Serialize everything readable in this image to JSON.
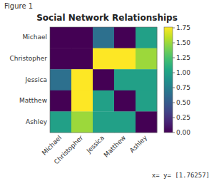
{
  "chart_data": {
    "type": "heatmap",
    "title": "Social Network Relationships",
    "categories": [
      "Michael",
      "Christopher",
      "Jessica",
      "Matthew",
      "Ashley"
    ],
    "values": [
      [
        0.0,
        0.0,
        0.65,
        0.0,
        1.0
      ],
      [
        0.0,
        0.0,
        1.76257,
        1.76257,
        1.5
      ],
      [
        0.65,
        1.76257,
        0.0,
        1.0,
        1.0
      ],
      [
        0.0,
        1.76257,
        1.0,
        0.0,
        1.0
      ],
      [
        1.0,
        1.5,
        1.0,
        1.0,
        0.0
      ]
    ],
    "color": "viridis",
    "colorbar_range": [
      0.0,
      1.76257
    ],
    "colorbar_ticks": [
      {
        "value": 0.0,
        "label": "0.00"
      },
      0.25,
      {
        "value": 0.5,
        "label": "0.50"
      },
      0.75,
      {
        "value": 1.0,
        "label": "1.00"
      },
      1.25,
      {
        "value": 1.5,
        "label": "1.50"
      },
      1.75
    ],
    "annotations": [
      "Figure 1",
      "x= y= [1.76257]"
    ]
  }
}
